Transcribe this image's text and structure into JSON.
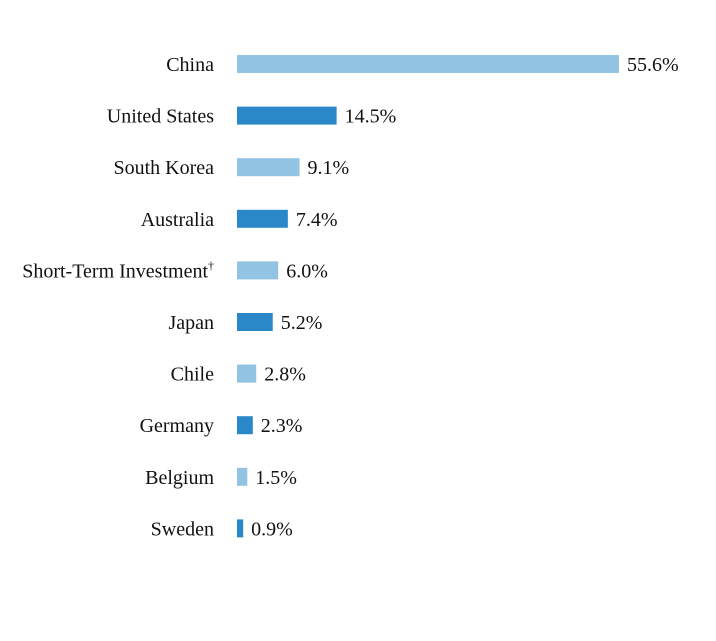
{
  "chart_data": {
    "type": "bar",
    "orientation": "horizontal",
    "title": "",
    "xlabel": "",
    "ylabel": "",
    "xlim": [
      0,
      55.6
    ],
    "grid": false,
    "legend": "none",
    "value_suffix": "%",
    "colors": {
      "light": "#93C3E3",
      "dark": "#2A88C8"
    },
    "categories": [
      {
        "label": "China",
        "footnote": "",
        "value": 55.6,
        "value_label": "55.6%",
        "color": "light"
      },
      {
        "label": "United States",
        "footnote": "",
        "value": 14.5,
        "value_label": "14.5%",
        "color": "dark"
      },
      {
        "label": "South Korea",
        "footnote": "",
        "value": 9.1,
        "value_label": "9.1%",
        "color": "light"
      },
      {
        "label": "Australia",
        "footnote": "",
        "value": 7.4,
        "value_label": "7.4%",
        "color": "dark"
      },
      {
        "label": "Short-Term Investment",
        "footnote": "†",
        "value": 6.0,
        "value_label": "6.0%",
        "color": "light"
      },
      {
        "label": "Japan",
        "footnote": "",
        "value": 5.2,
        "value_label": "5.2%",
        "color": "dark"
      },
      {
        "label": "Chile",
        "footnote": "",
        "value": 2.8,
        "value_label": "2.8%",
        "color": "light"
      },
      {
        "label": "Germany",
        "footnote": "",
        "value": 2.3,
        "value_label": "2.3%",
        "color": "dark"
      },
      {
        "label": "Belgium",
        "footnote": "",
        "value": 1.5,
        "value_label": "1.5%",
        "color": "light"
      },
      {
        "label": "Sweden",
        "footnote": "",
        "value": 0.9,
        "value_label": "0.9%",
        "color": "dark"
      }
    ]
  }
}
